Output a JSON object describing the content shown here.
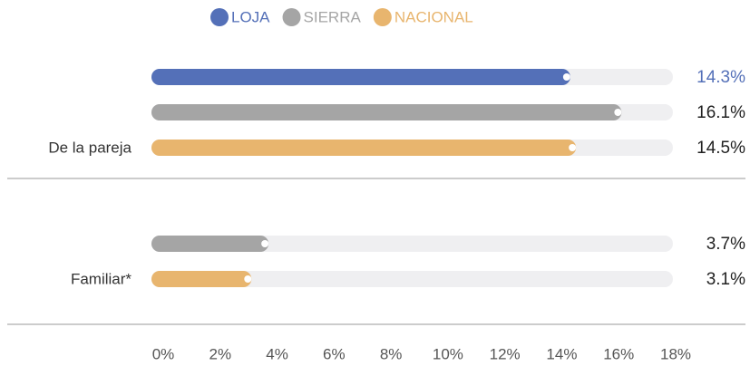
{
  "chart_data": {
    "type": "bar",
    "orientation": "horizontal",
    "categories": [
      "De la pareja",
      "Familiar*"
    ],
    "series": [
      {
        "name": "LOJA",
        "color": "#5470b8",
        "values": [
          14.3,
          null
        ],
        "value_labels": [
          "14.3%",
          null
        ]
      },
      {
        "name": "SIERRA",
        "color": "#a5a5a5",
        "values": [
          16.1,
          3.7
        ],
        "value_labels": [
          "16.1%",
          "3.7%"
        ]
      },
      {
        "name": "NACIONAL",
        "color": "#e8b56e",
        "values": [
          14.5,
          3.1
        ],
        "value_labels": [
          "14.5%",
          "3.1%"
        ]
      }
    ],
    "xlim": [
      0,
      18
    ],
    "xticks": [
      {
        "value": 0,
        "label": "0%"
      },
      {
        "value": 2,
        "label": "2%"
      },
      {
        "value": 4,
        "label": "4%"
      },
      {
        "value": 6,
        "label": "6%"
      },
      {
        "value": 8,
        "label": "8%"
      },
      {
        "value": 10,
        "label": "10%"
      },
      {
        "value": 12,
        "label": "12%"
      },
      {
        "value": 14,
        "label": "14%"
      },
      {
        "value": 16,
        "label": "16%"
      },
      {
        "value": 18,
        "label": "18%"
      }
    ],
    "legend": "top"
  }
}
